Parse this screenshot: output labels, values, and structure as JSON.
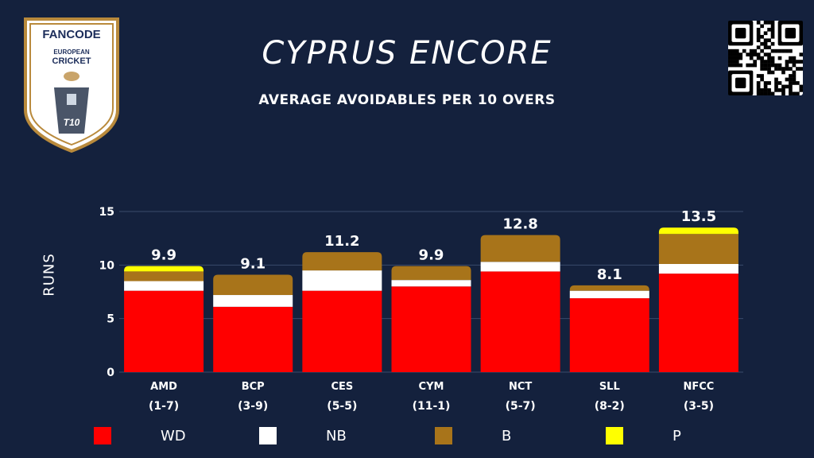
{
  "logo": {
    "brand": "FANCODE",
    "line1": "EUROPEAN",
    "line2": "CRICKET",
    "format": "T10"
  },
  "qr_icon": "qr-code-icon",
  "title": "CYPRUS ENCORE",
  "subtitle": "AVERAGE AVOIDABLES PER 10 OVERS",
  "chart_data": {
    "type": "bar",
    "stacked": true,
    "title": "CYPRUS ENCORE",
    "subtitle": "AVERAGE AVOIDABLES PER 10 OVERS",
    "xlabel": "",
    "ylabel": "RUNS",
    "ylim": [
      0,
      15
    ],
    "yticks": [
      0,
      5,
      10,
      15
    ],
    "grid": true,
    "categories": [
      "AMD",
      "BCP",
      "CES",
      "CYM",
      "NCT",
      "SLL",
      "NFCC"
    ],
    "category_records": [
      "(1-7)",
      "(3-9)",
      "(5-5)",
      "(11-1)",
      "(5-7)",
      "(8-2)",
      "(3-5)"
    ],
    "totals": [
      "9.9",
      "9.1",
      "11.2",
      "9.9",
      "12.8",
      "8.1",
      "13.5"
    ],
    "series": [
      {
        "name": "WD",
        "color": "#ff0000",
        "values": [
          7.6,
          6.1,
          7.6,
          8.0,
          9.4,
          6.9,
          9.2
        ]
      },
      {
        "name": "NB",
        "color": "#ffffff",
        "values": [
          0.9,
          1.1,
          1.9,
          0.6,
          0.9,
          0.7,
          0.9
        ]
      },
      {
        "name": "B",
        "color": "#a8741a",
        "values": [
          0.9,
          1.9,
          1.7,
          1.3,
          2.5,
          0.5,
          2.8
        ]
      },
      {
        "name": "P",
        "color": "#ffff00",
        "values": [
          0.5,
          0.0,
          0.0,
          0.0,
          0.0,
          0.0,
          0.6
        ]
      }
    ],
    "legend_position": "bottom"
  }
}
